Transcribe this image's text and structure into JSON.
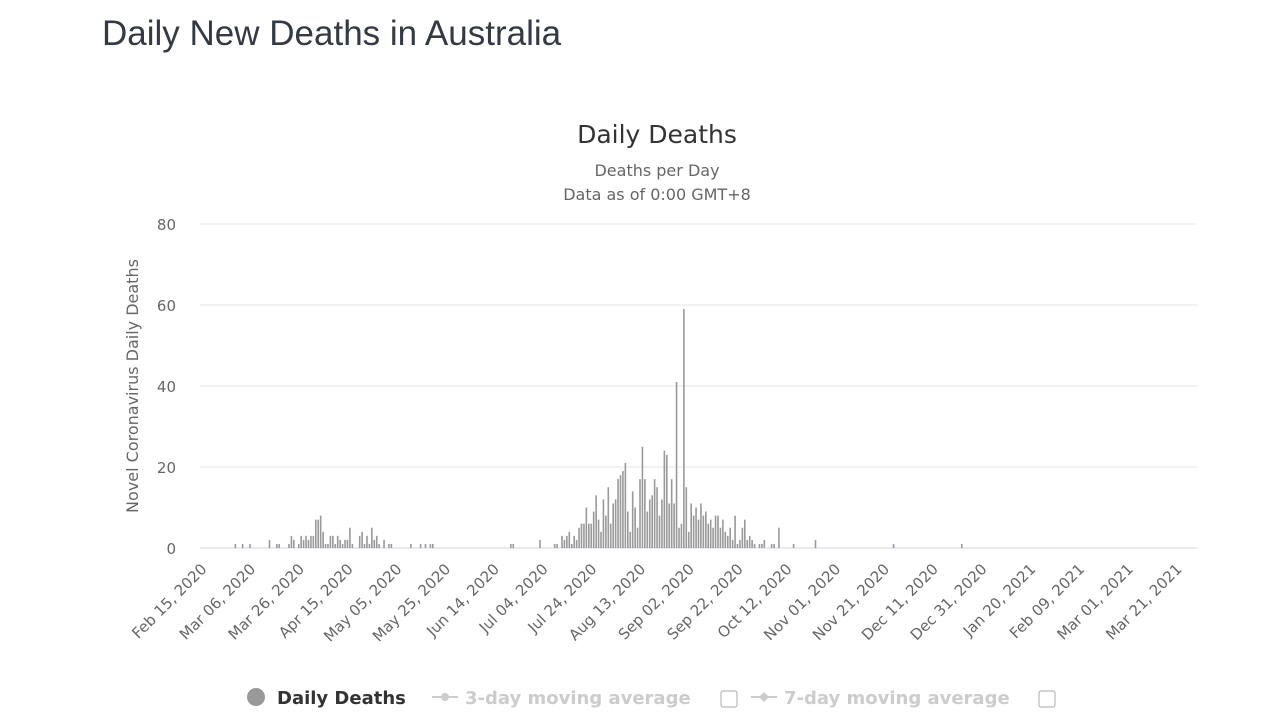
{
  "page": {
    "title": "Daily New Deaths in Australia"
  },
  "chart_data": {
    "type": "bar",
    "title": "Daily Deaths",
    "subtitle": "Deaths per Day",
    "subtitle2": "Data as of 0:00 GMT+8",
    "ylabel": "Novel Coronavirus Daily Deaths",
    "xlabel": "",
    "ylim": [
      0,
      80
    ],
    "yticks": [
      0,
      20,
      40,
      60,
      80
    ],
    "x_range": [
      "2020-02-15",
      "2021-03-30"
    ],
    "xticks": [
      "Feb 15, 2020",
      "Mar 06, 2020",
      "Mar 26, 2020",
      "Apr 15, 2020",
      "May 05, 2020",
      "May 25, 2020",
      "Jun 14, 2020",
      "Jul 04, 2020",
      "Jul 24, 2020",
      "Aug 13, 2020",
      "Sep 02, 2020",
      "Sep 22, 2020",
      "Oct 12, 2020",
      "Nov 01, 2020",
      "Nov 21, 2020",
      "Dec 11, 2020",
      "Dec 31, 2020",
      "Jan 20, 2021",
      "Feb 09, 2021",
      "Mar 01, 2021",
      "Mar 21, 2021"
    ],
    "grid": true,
    "bar_color": "#999999",
    "series": [
      {
        "name": "Daily Deaths",
        "start": "2020-02-15",
        "values": [
          0,
          0,
          0,
          0,
          0,
          0,
          0,
          0,
          0,
          0,
          0,
          0,
          0,
          0,
          1,
          0,
          0,
          1,
          0,
          0,
          1,
          0,
          0,
          0,
          0,
          0,
          0,
          0,
          2,
          0,
          0,
          1,
          1,
          0,
          0,
          0,
          1,
          3,
          2,
          0,
          1,
          3,
          2,
          3,
          2,
          3,
          3,
          7,
          7,
          8,
          4,
          1,
          1,
          3,
          3,
          1,
          3,
          2,
          1,
          2,
          2,
          5,
          1,
          0,
          0,
          3,
          4,
          1,
          3,
          1,
          5,
          2,
          3,
          1,
          0,
          2,
          0,
          1,
          1,
          0,
          0,
          0,
          0,
          0,
          0,
          0,
          1,
          0,
          0,
          0,
          1,
          0,
          1,
          0,
          1,
          1,
          0,
          0,
          0,
          0,
          0,
          0,
          0,
          0,
          0,
          0,
          0,
          0,
          0,
          0,
          0,
          0,
          0,
          0,
          0,
          0,
          0,
          0,
          0,
          0,
          0,
          0,
          0,
          0,
          0,
          0,
          0,
          1,
          1,
          0,
          0,
          0,
          0,
          0,
          0,
          0,
          0,
          0,
          0,
          2,
          0,
          0,
          0,
          0,
          0,
          1,
          1,
          0,
          3,
          2,
          3,
          4,
          1,
          3,
          2,
          5,
          6,
          6,
          10,
          6,
          6,
          9,
          13,
          7,
          4,
          12,
          8,
          15,
          6,
          11,
          12,
          17,
          18,
          19,
          21,
          9,
          4,
          14,
          10,
          5,
          17,
          25,
          17,
          9,
          12,
          13,
          17,
          15,
          8,
          12,
          24,
          23,
          11,
          17,
          11,
          41,
          5,
          6,
          59,
          15,
          4,
          11,
          8,
          10,
          7,
          11,
          8,
          9,
          6,
          7,
          5,
          8,
          8,
          5,
          7,
          4,
          3,
          5,
          2,
          8,
          1,
          2,
          5,
          7,
          2,
          3,
          2,
          1,
          0,
          1,
          1,
          2,
          0,
          0,
          1,
          1,
          0,
          5,
          0,
          0,
          0,
          0,
          0,
          1,
          0,
          0,
          0,
          0,
          0,
          0,
          0,
          0,
          2,
          0,
          0,
          0,
          0,
          0,
          0,
          0,
          0,
          0,
          0,
          0,
          0,
          0,
          0,
          0,
          0,
          0,
          0,
          0,
          0,
          0,
          0,
          0,
          0,
          0,
          0,
          0,
          0,
          0,
          0,
          0,
          1,
          0,
          0,
          0,
          0,
          0,
          0,
          0,
          0,
          0,
          0,
          0,
          0,
          0,
          0,
          0,
          0,
          0,
          0,
          0,
          0,
          0,
          0,
          0,
          0,
          0,
          0,
          0,
          1
        ]
      }
    ],
    "legend": {
      "placement": "bottom",
      "items": [
        {
          "label": "Daily Deaths",
          "color": "#999999",
          "active": true
        },
        {
          "label": "3-day moving average",
          "color": "#cccccc",
          "active": false
        },
        {
          "label": "7-day moving average",
          "color": "#cccccc",
          "active": false
        }
      ]
    }
  }
}
